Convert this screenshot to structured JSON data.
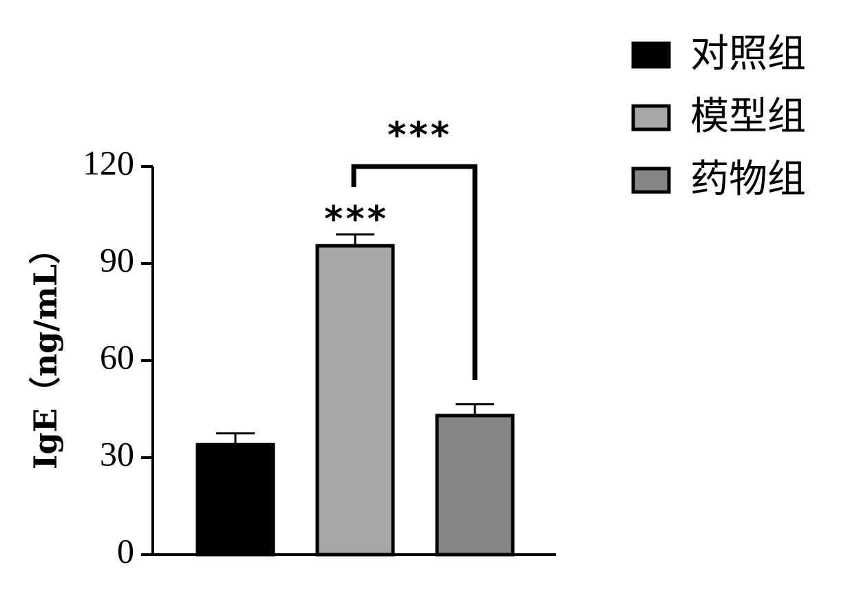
{
  "chart_data": {
    "type": "bar",
    "categories": [
      null
    ],
    "y_label": "IgE（ng/mL）",
    "series": [
      {
        "name": "对照组",
        "color": "#000000",
        "values": [
          34
        ],
        "errors": [
          3.5
        ]
      },
      {
        "name": "模型组",
        "color": "#a6a6a8",
        "values": [
          95.5
        ],
        "errors": [
          3.5
        ]
      },
      {
        "name": "药物组",
        "color": "#858585",
        "values": [
          43
        ],
        "errors": [
          3.5
        ]
      }
    ],
    "annotations": [
      "***",
      "***"
    ],
    "ylim": [
      0,
      120
    ],
    "yticks": [
      0,
      30,
      60,
      90,
      120
    ],
    "grid": false
  }
}
